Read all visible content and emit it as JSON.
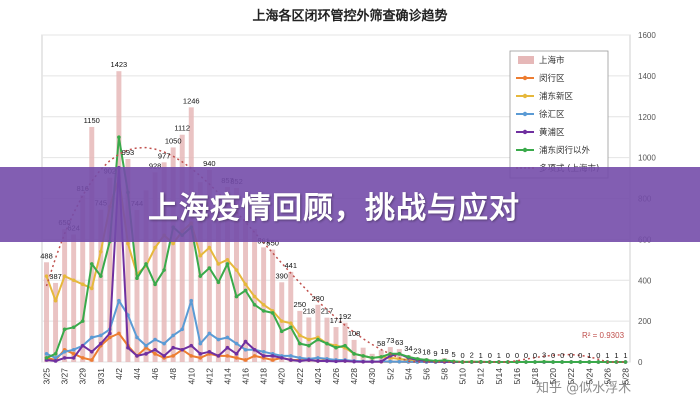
{
  "chart_data": {
    "type": "bar+line",
    "title": "上海各区闭环管控外筛查确诊趋势",
    "categories": [
      "3/25",
      "3/26",
      "3/27",
      "3/28",
      "3/29",
      "3/30",
      "3/31",
      "4/1",
      "4/2",
      "4/3",
      "4/4",
      "4/5",
      "4/6",
      "4/7",
      "4/8",
      "4/9",
      "4/10",
      "4/11",
      "4/12",
      "4/13",
      "4/14",
      "4/15",
      "4/16",
      "4/17",
      "4/18",
      "4/19",
      "4/20",
      "4/21",
      "4/22",
      "4/23",
      "4/24",
      "4/25",
      "4/26",
      "4/27",
      "4/28",
      "4/29",
      "4/30",
      "5/1",
      "5/2",
      "5/3",
      "5/4",
      "5/5",
      "5/6",
      "5/7",
      "5/8",
      "5/9",
      "5/10",
      "5/11",
      "5/12",
      "5/13",
      "5/14",
      "5/15",
      "5/16",
      "5/17",
      "5/18",
      "5/19",
      "5/20",
      "5/21",
      "5/22",
      "5/23",
      "5/24",
      "5/25",
      "5/26",
      "5/27",
      "5/28"
    ],
    "x_tick_labels": [
      "3/25",
      "3/27",
      "3/29",
      "3/31",
      "4/2",
      "4/4",
      "4/6",
      "4/8",
      "4/10",
      "4/12",
      "4/14",
      "4/16",
      "4/18",
      "4/20",
      "4/22",
      "4/24",
      "4/26",
      "4/28",
      "4/30",
      "5/2",
      "5/4",
      "5/6",
      "5/8",
      "5/10",
      "5/12",
      "5/14",
      "5/16",
      "5/18",
      "5/20",
      "5/22",
      "5/24",
      "5/26",
      "5/28"
    ],
    "y_ticks": [
      0,
      200,
      400,
      600,
      800,
      1000,
      1200,
      1400,
      1600
    ],
    "ylim": [
      0,
      1600
    ],
    "bar_series": {
      "name": "上海市",
      "color": "#e6b8b8",
      "values": [
        488,
        387,
        650,
        624,
        816,
        1150,
        745,
        902,
        1423,
        993,
        744,
        840,
        928,
        977,
        1050,
        1112,
        1246,
        880,
        940,
        820,
        857,
        852,
        700,
        650,
        561,
        550,
        390,
        441,
        250,
        218,
        280,
        217,
        171,
        192,
        108,
        70,
        40,
        58,
        73,
        63,
        34,
        23,
        18,
        9,
        19,
        5,
        0,
        2,
        1,
        0,
        1,
        0,
        0,
        0,
        0,
        3,
        0,
        0,
        0,
        0,
        1,
        0,
        1,
        1,
        1
      ],
      "labels": [
        "488",
        "387",
        "650",
        "624",
        "816",
        "1150",
        "745",
        "902",
        "1423",
        "993",
        "744",
        "",
        "928",
        "977",
        "1050",
        "1112",
        "1246",
        "",
        "940",
        "",
        "857",
        "852",
        "",
        "",
        "561",
        "550",
        "390",
        "441",
        "250",
        "218",
        "280",
        "217",
        "171",
        "192",
        "108",
        "",
        "",
        "58",
        "73",
        "63",
        "34",
        "23",
        "18",
        "9",
        "19",
        "5",
        "0",
        "2",
        "1",
        "0",
        "1",
        "0",
        "0",
        "0",
        "0",
        "3",
        "0",
        "0",
        "0",
        "0",
        "1",
        "0",
        "1",
        "1",
        "1"
      ]
    },
    "line_series": [
      {
        "name": "闵行区",
        "color": "#ed7d31",
        "values": [
          20,
          10,
          60,
          40,
          20,
          10,
          80,
          120,
          140,
          80,
          30,
          70,
          40,
          20,
          30,
          60,
          30,
          20,
          40,
          30,
          30,
          20,
          10,
          30,
          20,
          10,
          20,
          10,
          10,
          10,
          5,
          10,
          5,
          5,
          3,
          2,
          2,
          1,
          1,
          1,
          0,
          0,
          0,
          0,
          0,
          0,
          0,
          0,
          0,
          0,
          0,
          0,
          0,
          0,
          0,
          0,
          0,
          0,
          0,
          0,
          0,
          0,
          0,
          0,
          0
        ]
      },
      {
        "name": "浦东新区",
        "color": "#e6b83c",
        "values": [
          420,
          300,
          420,
          400,
          380,
          360,
          540,
          760,
          900,
          580,
          430,
          470,
          560,
          620,
          580,
          640,
          680,
          520,
          560,
          480,
          500,
          450,
          380,
          320,
          280,
          250,
          200,
          190,
          130,
          110,
          120,
          90,
          80,
          70,
          40,
          30,
          20,
          25,
          20,
          15,
          10,
          8,
          5,
          3,
          5,
          2,
          0,
          1,
          0,
          0,
          0,
          0,
          0,
          0,
          0,
          1,
          0,
          0,
          0,
          0,
          0,
          0,
          0,
          0,
          0
        ]
      },
      {
        "name": "徐汇区",
        "color": "#5b9bd5",
        "values": [
          40,
          20,
          50,
          60,
          80,
          120,
          130,
          160,
          300,
          230,
          120,
          80,
          110,
          90,
          130,
          160,
          300,
          90,
          140,
          110,
          120,
          90,
          60,
          60,
          50,
          40,
          30,
          30,
          20,
          15,
          20,
          15,
          10,
          10,
          5,
          3,
          2,
          3,
          2,
          1,
          1,
          0,
          0,
          0,
          0,
          0,
          0,
          0,
          0,
          0,
          0,
          0,
          0,
          0,
          0,
          0,
          0,
          0,
          0,
          0,
          0,
          0,
          0,
          0,
          0
        ]
      },
      {
        "name": "黄浦区",
        "color": "#7030a0",
        "values": [
          10,
          5,
          20,
          20,
          80,
          50,
          90,
          140,
          950,
          70,
          30,
          40,
          60,
          30,
          70,
          60,
          80,
          40,
          50,
          30,
          70,
          40,
          100,
          60,
          30,
          30,
          20,
          10,
          5,
          10,
          5,
          5,
          3,
          5,
          2,
          1,
          1,
          2,
          30,
          40,
          20,
          10,
          5,
          2,
          1,
          0,
          0,
          0,
          0,
          0,
          0,
          0,
          0,
          0,
          0,
          0,
          0,
          0,
          0,
          0,
          0,
          0,
          0,
          0,
          0
        ]
      },
      {
        "name": "浦东闵行以外",
        "color": "#3aaa4b",
        "values": [
          20,
          40,
          160,
          170,
          200,
          480,
          420,
          590,
          1100,
          830,
          410,
          480,
          380,
          450,
          660,
          620,
          660,
          420,
          460,
          390,
          480,
          320,
          350,
          280,
          250,
          240,
          150,
          170,
          90,
          80,
          110,
          90,
          70,
          80,
          40,
          30,
          20,
          25,
          40,
          40,
          25,
          15,
          10,
          5,
          8,
          3,
          0,
          1,
          1,
          0,
          0,
          0,
          0,
          0,
          0,
          1,
          0,
          0,
          0,
          0,
          0,
          0,
          0,
          0,
          0
        ]
      }
    ],
    "trendline": {
      "name": "多项式 (上海市)",
      "color": "#c0504d",
      "style": "dotted",
      "r_squared_label": "R² = 0.9303"
    },
    "legend": {
      "position": "top-right",
      "entries": [
        "上海市",
        "闵行区",
        "浦东新区",
        "徐汇区",
        "黄浦区",
        "浦东闵行以外",
        "多项式 (上海市)"
      ]
    },
    "grid": true
  },
  "banner": {
    "text": "上海疫情回顾，挑战与应对"
  },
  "watermark": {
    "text": "知乎 @似水浮木"
  }
}
